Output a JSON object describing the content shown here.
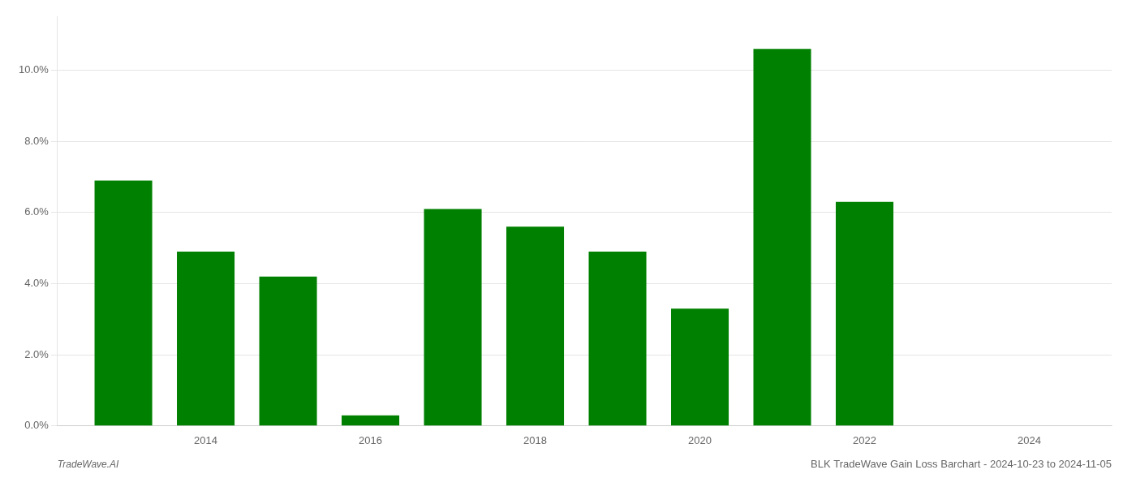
{
  "chart_data": {
    "type": "bar",
    "title": "BLK TradeWave Gain Loss Barchart - 2024-10-23 to 2024-11-05",
    "annotations": [
      "TradeWave.AI"
    ],
    "x": [
      2013,
      2014,
      2015,
      2016,
      2017,
      2018,
      2019,
      2020,
      2021,
      2022,
      2023
    ],
    "values": [
      0.069,
      0.049,
      0.042,
      0.003,
      0.061,
      0.056,
      0.049,
      0.033,
      0.106,
      0.063,
      0.0
    ],
    "color": "#008000",
    "xlim": [
      2012.2,
      2025.0
    ],
    "xticks": [
      2014,
      2016,
      2018,
      2020,
      2022,
      2024
    ],
    "ylim": [
      0,
      0.115
    ],
    "yticks": [
      {
        "value": 0.0,
        "label": "0.0%"
      },
      {
        "value": 0.02,
        "label": "2.0%"
      },
      {
        "value": 0.04,
        "label": "4.0%"
      },
      {
        "value": 0.06,
        "label": "6.0%"
      },
      {
        "value": 0.08,
        "label": "8.0%"
      },
      {
        "value": 0.1,
        "label": "10.0%"
      }
    ],
    "grid": true
  }
}
